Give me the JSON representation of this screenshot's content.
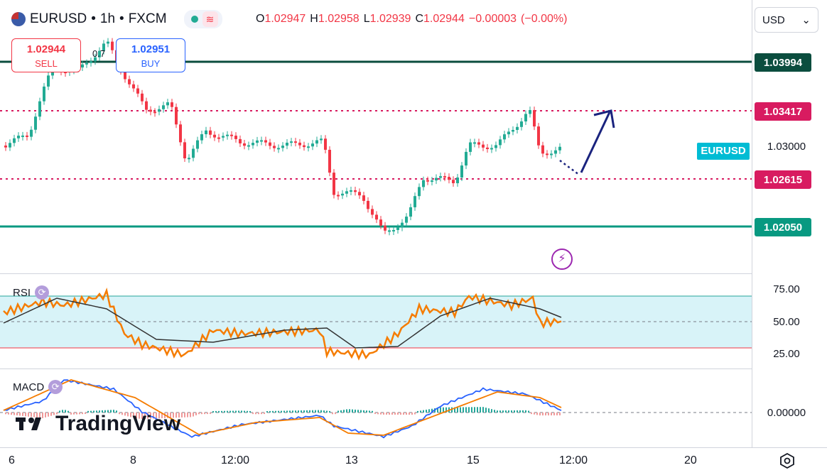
{
  "header": {
    "symbol": "EURUSD",
    "separator": "•",
    "interval": "1h",
    "exchange": "FXCM",
    "ohlc": {
      "open_label": "O",
      "open": "1.02947",
      "high_label": "H",
      "high": "1.02958",
      "low_label": "L",
      "low": "1.02939",
      "close_label": "C",
      "close": "1.02944",
      "change": "−0.00003",
      "change_pct": "(−0.00%)"
    }
  },
  "currency": {
    "value": "USD"
  },
  "trade": {
    "sell_price": "1.02944",
    "sell_label": "SELL",
    "buy_price": "1.02951",
    "buy_label": "BUY",
    "fib_label": "0.7"
  },
  "price_levels": {
    "resistance_top": "1.03994",
    "resistance_dotted": "1.03417",
    "support_dotted": "1.02615",
    "support_bottom": "1.02050",
    "scale_1": "1.03000",
    "symbol_badge": "EURUSD"
  },
  "indicators": {
    "rsi": {
      "label": "RSI",
      "ticks": [
        "75.00",
        "50.00",
        "25.00"
      ]
    },
    "macd": {
      "label": "MACD",
      "zero": "0.00000"
    }
  },
  "time_axis": {
    "labels": [
      "6",
      "8",
      "12:00",
      "13",
      "15",
      "12:00",
      "20"
    ]
  },
  "logo": {
    "text": "TradingView"
  },
  "colors": {
    "up": "#22ab94",
    "down": "#f23645",
    "resistance": "#0b4d3e",
    "support": "#089981",
    "dotted": "#d81b60",
    "badge": "#00bcd4",
    "rsi_line": "#f57c00",
    "arrow": "#1a237e"
  }
}
